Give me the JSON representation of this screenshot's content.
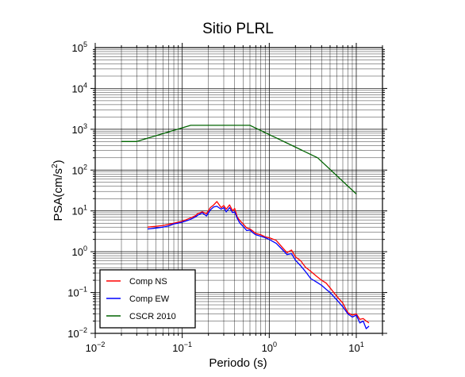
{
  "chart_data": {
    "type": "line",
    "title": "Sitio PLRL",
    "xlabel": "Periodo (s)",
    "ylabel_base": "PSA(cm/s",
    "ylabel_sup": "2",
    "ylabel_tail": ")",
    "x_scale": "log",
    "y_scale": "log",
    "xlim": [
      0.01,
      20
    ],
    "ylim": [
      0.01,
      100000
    ],
    "grid": true,
    "legend_position": "bottom-left",
    "x_ticks": [
      {
        "value": 0.01,
        "base": "10",
        "exp": "−2"
      },
      {
        "value": 0.1,
        "base": "10",
        "exp": "−1"
      },
      {
        "value": 1,
        "base": "10",
        "exp": "0"
      },
      {
        "value": 10,
        "base": "10",
        "exp": "1"
      }
    ],
    "y_ticks": [
      {
        "value": 0.01,
        "base": "10",
        "exp": "−2"
      },
      {
        "value": 0.1,
        "base": "10",
        "exp": "−1"
      },
      {
        "value": 1,
        "base": "10",
        "exp": "0"
      },
      {
        "value": 10,
        "base": "10",
        "exp": "1"
      },
      {
        "value": 100,
        "base": "10",
        "exp": "2"
      },
      {
        "value": 1000,
        "base": "10",
        "exp": "3"
      },
      {
        "value": 10000,
        "base": "10",
        "exp": "4"
      },
      {
        "value": 100000,
        "base": "10",
        "exp": "5"
      }
    ],
    "series": [
      {
        "name": "Comp NS",
        "color": "#ff0000",
        "x": [
          0.04,
          0.05,
          0.06,
          0.07,
          0.08,
          0.09,
          0.1,
          0.12,
          0.14,
          0.15,
          0.17,
          0.19,
          0.21,
          0.23,
          0.25,
          0.28,
          0.3,
          0.32,
          0.35,
          0.38,
          0.4,
          0.43,
          0.46,
          0.5,
          0.55,
          0.6,
          0.65,
          0.7,
          0.8,
          0.9,
          1.0,
          1.2,
          1.4,
          1.6,
          1.8,
          2.0,
          2.3,
          2.6,
          3.0,
          3.5,
          4.0,
          4.5,
          5.0,
          6.0,
          7.0,
          8.0,
          9.0,
          10.0,
          11.0,
          12.0,
          13.0,
          14.0
        ],
        "y": [
          4.0,
          4.2,
          4.4,
          4.7,
          5.0,
          5.3,
          5.6,
          6.5,
          7.5,
          8.5,
          9.5,
          8.5,
          12.0,
          14.0,
          17.0,
          12.0,
          13.5,
          11.0,
          14.0,
          10.0,
          11.5,
          7.0,
          5.8,
          4.8,
          3.8,
          3.6,
          3.2,
          2.8,
          2.6,
          2.3,
          2.2,
          1.9,
          1.3,
          0.95,
          1.1,
          0.75,
          0.6,
          0.42,
          0.33,
          0.25,
          0.2,
          0.17,
          0.13,
          0.08,
          0.055,
          0.032,
          0.028,
          0.03,
          0.022,
          0.023,
          0.02,
          0.018
        ]
      },
      {
        "name": "Comp EW",
        "color": "#0000ff",
        "x": [
          0.04,
          0.05,
          0.06,
          0.07,
          0.08,
          0.09,
          0.1,
          0.12,
          0.14,
          0.15,
          0.17,
          0.19,
          0.21,
          0.23,
          0.25,
          0.28,
          0.3,
          0.32,
          0.35,
          0.38,
          0.4,
          0.43,
          0.46,
          0.5,
          0.55,
          0.6,
          0.65,
          0.7,
          0.8,
          0.9,
          1.0,
          1.2,
          1.4,
          1.6,
          1.8,
          2.0,
          2.3,
          2.6,
          3.0,
          3.5,
          4.0,
          4.5,
          5.0,
          6.0,
          7.0,
          8.0,
          9.0,
          10.0,
          11.0,
          12.0,
          13.0,
          14.0
        ],
        "y": [
          3.6,
          3.8,
          4.0,
          4.3,
          4.8,
          5.0,
          5.3,
          6.0,
          7.0,
          7.8,
          9.0,
          7.5,
          10.5,
          12.5,
          13.0,
          11.0,
          12.0,
          9.5,
          12.0,
          9.0,
          9.5,
          6.5,
          5.0,
          4.2,
          3.3,
          3.4,
          2.9,
          2.6,
          2.4,
          2.2,
          2.0,
          1.6,
          1.15,
          0.85,
          0.9,
          0.62,
          0.45,
          0.33,
          0.22,
          0.18,
          0.15,
          0.12,
          0.1,
          0.065,
          0.045,
          0.03,
          0.025,
          0.028,
          0.018,
          0.02,
          0.013,
          0.015
        ]
      },
      {
        "name": "CSCR 2010",
        "color": "#006400",
        "x": [
          0.02,
          0.03,
          0.125,
          0.6,
          3.6,
          10.0
        ],
        "y": [
          500,
          500,
          1250,
          1250,
          200,
          26
        ]
      }
    ]
  }
}
